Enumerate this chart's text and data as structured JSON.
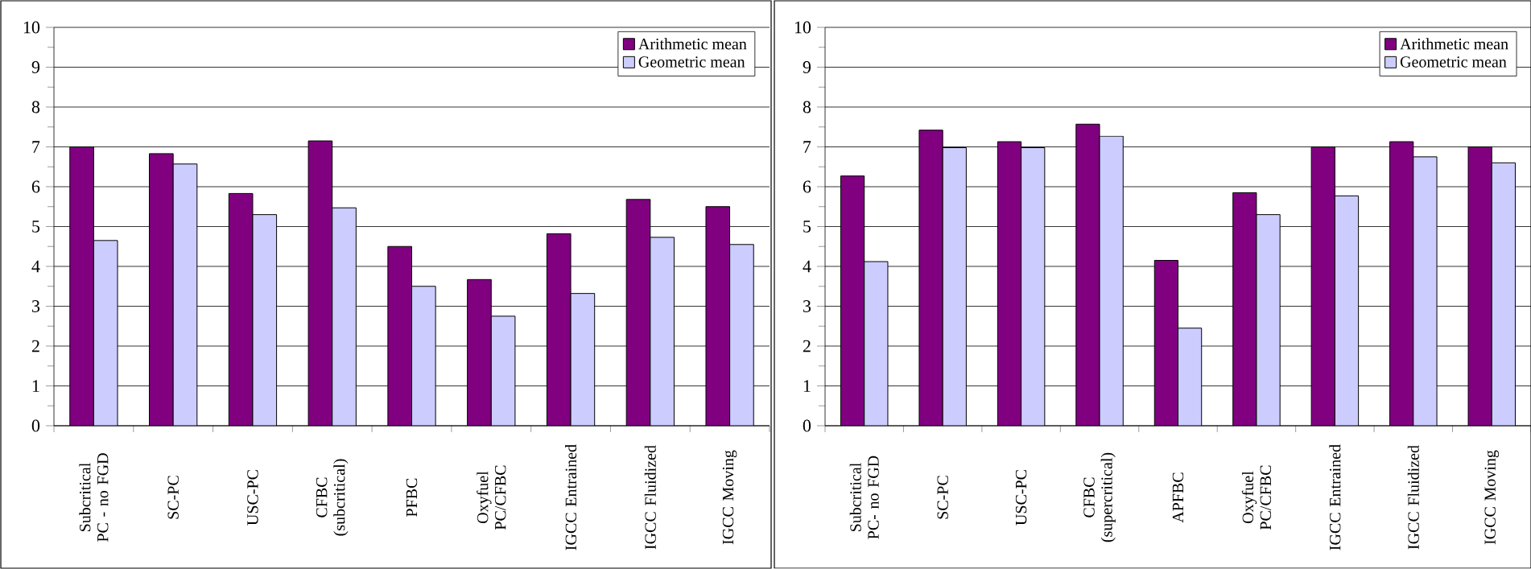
{
  "chart_data": [
    {
      "type": "bar",
      "categories": [
        "Subcritical PC - no FGD",
        "SC-PC",
        "USC-PC",
        "CFBC (subcritical)",
        "PFBC",
        "Oxyfuel PC/CFBC",
        "IGCC Entrained",
        "IGCC Fluidized",
        "IGCC Moving"
      ],
      "series": [
        {
          "name": "Arithmetic mean",
          "color": "#800080",
          "values": [
            7.0,
            6.83,
            5.83,
            7.15,
            4.5,
            3.67,
            4.82,
            5.68,
            5.5
          ]
        },
        {
          "name": "Geometric mean",
          "color": "#ccccff",
          "values": [
            4.65,
            6.57,
            5.3,
            5.47,
            3.5,
            2.75,
            3.32,
            4.73,
            4.55
          ]
        }
      ],
      "ylim": [
        0,
        10
      ],
      "yticks": [
        0,
        1,
        2,
        3,
        4,
        5,
        6,
        7,
        8,
        9,
        10
      ],
      "grid": "y",
      "legend": "top right"
    },
    {
      "type": "bar",
      "categories": [
        "Subcritical PC- no FGD",
        "SC-PC",
        "USC-PC",
        "CFBC (supercritical)",
        "APFBC",
        "Oxyfuel PC/CFBC",
        "IGCC Entrained",
        "IGCC Fluidized",
        "IGCC Moving"
      ],
      "series": [
        {
          "name": "Arithmetic mean",
          "color": "#800080",
          "values": [
            6.27,
            7.42,
            7.13,
            7.57,
            4.15,
            5.85,
            7.0,
            7.13,
            7.0
          ]
        },
        {
          "name": "Geometric mean",
          "color": "#ccccff",
          "values": [
            4.12,
            6.98,
            6.98,
            7.27,
            2.45,
            5.3,
            5.77,
            6.75,
            6.6
          ]
        }
      ],
      "ylim": [
        0,
        10
      ],
      "yticks": [
        0,
        1,
        2,
        3,
        4,
        5,
        6,
        7,
        8,
        9,
        10
      ],
      "grid": "y",
      "legend": "top right"
    }
  ]
}
